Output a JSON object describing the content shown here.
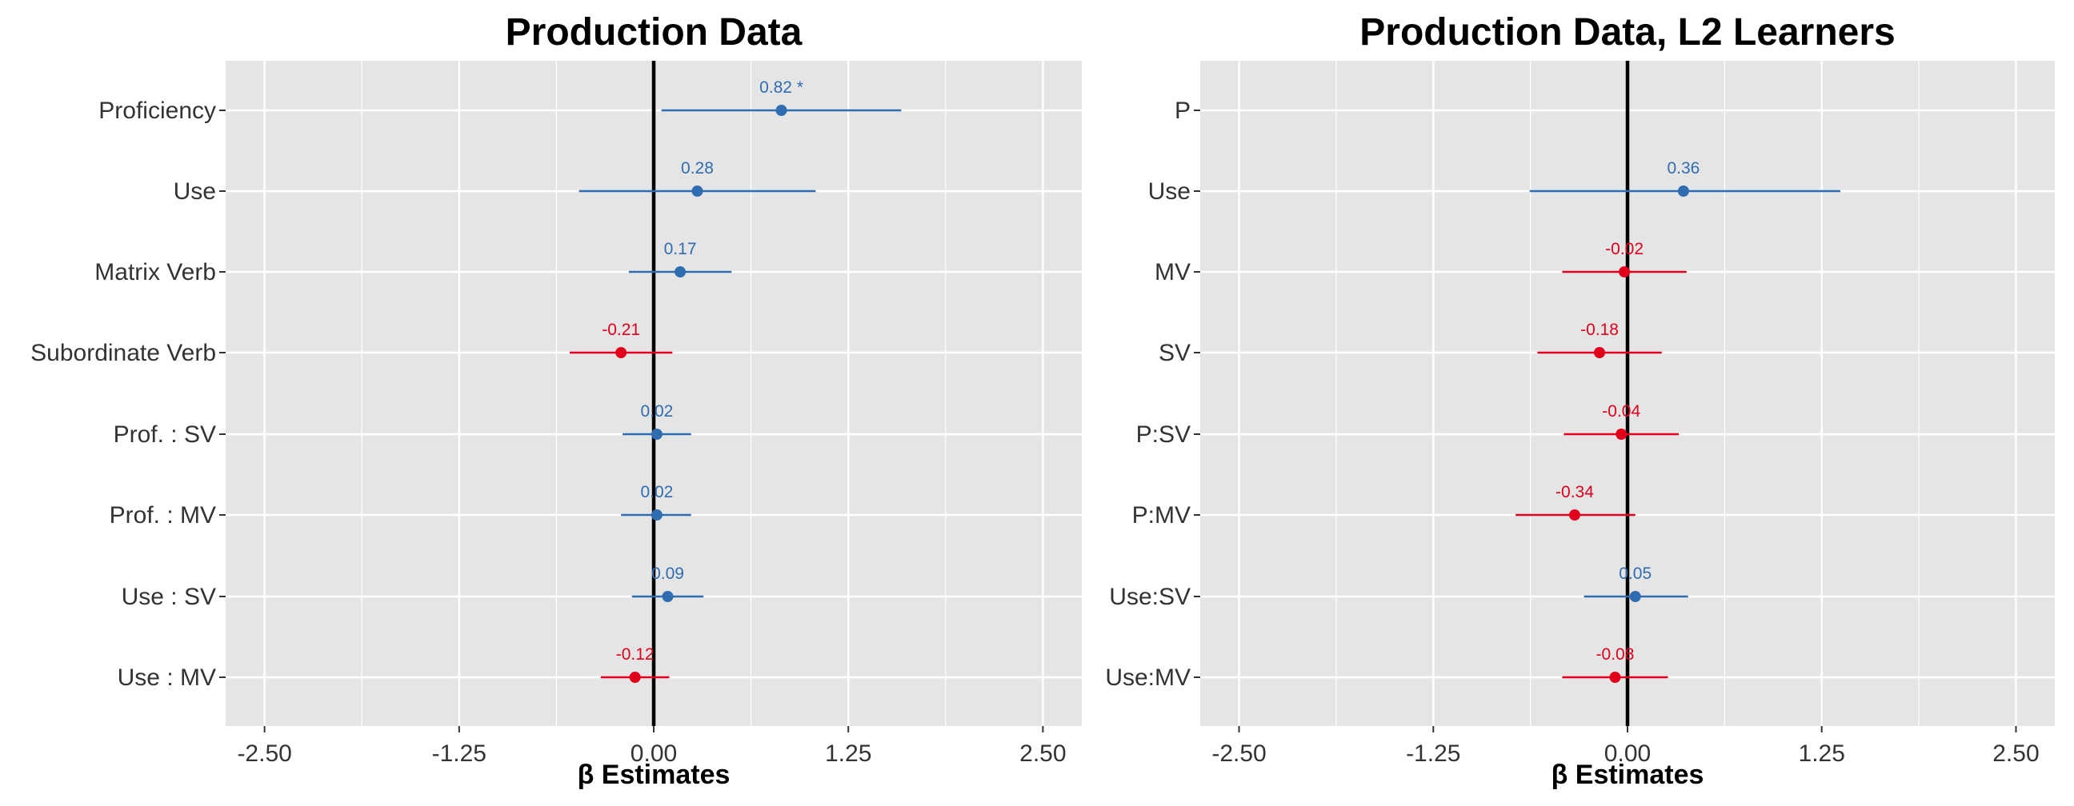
{
  "chart_data": [
    {
      "type": "forest",
      "title": "Production Data",
      "xlabel": "β Estimates",
      "ylabel": "",
      "xlim": [
        -2.75,
        2.75
      ],
      "x_ticks": [
        -2.5,
        -1.25,
        0,
        1.25,
        2.5
      ],
      "x_tick_labels": [
        "-2.50",
        "-1.25",
        "0.00",
        "1.25",
        "2.50"
      ],
      "reference_line": 0,
      "grid": true,
      "colors": {
        "positive": "#2F6DB0",
        "negative": "#E0001B",
        "background": "#E5E5E5",
        "gridline": "#FFFFFF"
      },
      "categories": [
        "Proficiency",
        "Use",
        "Matrix Verb",
        "Subordinate Verb",
        "Prof. : SV",
        "Prof. : MV",
        "Use : SV",
        "Use : MV"
      ],
      "estimates": [
        0.82,
        0.28,
        0.17,
        -0.21,
        0.02,
        0.02,
        0.09,
        -0.12
      ],
      "lower": [
        0.05,
        -0.48,
        -0.16,
        -0.54,
        -0.2,
        -0.21,
        -0.14,
        -0.34
      ],
      "upper": [
        1.59,
        1.04,
        0.5,
        0.12,
        0.24,
        0.24,
        0.32,
        0.1
      ],
      "labels": [
        "0.82 *",
        "0.28",
        "0.17",
        "-0.21",
        "0.02",
        "0.02",
        "0.09",
        "-0.12"
      ]
    },
    {
      "type": "forest",
      "title": "Production Data, L2 Learners",
      "xlabel": "β Estimates",
      "ylabel": "",
      "xlim": [
        -2.75,
        2.75
      ],
      "x_ticks": [
        -2.5,
        -1.25,
        0,
        1.25,
        2.5
      ],
      "x_tick_labels": [
        "-2.50",
        "-1.25",
        "0.00",
        "1.25",
        "2.50"
      ],
      "reference_line": 0,
      "grid": true,
      "colors": {
        "positive": "#2F6DB0",
        "negative": "#E0001B",
        "background": "#E5E5E5",
        "gridline": "#FFFFFF"
      },
      "categories": [
        "P",
        "Use",
        "MV",
        "SV",
        "P:SV",
        "P:MV",
        "Use:SV",
        "Use:MV"
      ],
      "estimates": [
        null,
        0.36,
        -0.02,
        -0.18,
        -0.04,
        -0.34,
        0.05,
        -0.08
      ],
      "lower": [
        null,
        -0.63,
        -0.42,
        -0.58,
        -0.41,
        -0.72,
        -0.28,
        -0.42
      ],
      "upper": [
        null,
        1.37,
        0.38,
        0.22,
        0.33,
        0.05,
        0.39,
        0.26
      ],
      "labels": [
        "",
        "0.36",
        "-0.02",
        "-0.18",
        "-0.04",
        "-0.34",
        "0.05",
        "-0.08"
      ]
    }
  ]
}
